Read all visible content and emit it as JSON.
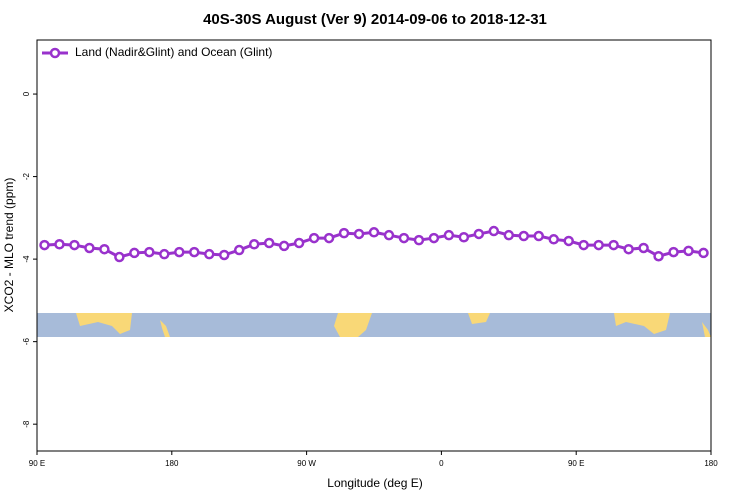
{
  "chart_data": {
    "type": "line",
    "title": "40S-30S August (Ver 9)   2014-09-06 to 2018-12-31",
    "x_label": "Longitude (deg E)",
    "y_label": "XCO2 - MLO trend (ppm)",
    "x": [
      95,
      105,
      115,
      125,
      135,
      145,
      155,
      165,
      175,
      185,
      195,
      205,
      215,
      225,
      235,
      245,
      255,
      265,
      275,
      285,
      295,
      305,
      315,
      325,
      335,
      345,
      355,
      365,
      375,
      385,
      395,
      405,
      415,
      425,
      435,
      445,
      455,
      465,
      475,
      485,
      495,
      505,
      515,
      525,
      535
    ],
    "series": [
      {
        "name": "Land (Nadir&Glint) and Ocean (Glint)",
        "color": "#9932cc",
        "values": [
          -3.66,
          -3.64,
          -3.66,
          -3.73,
          -3.76,
          -3.95,
          -3.85,
          -3.83,
          -3.88,
          -3.83,
          -3.83,
          -3.88,
          -3.9,
          -3.78,
          -3.64,
          -3.61,
          -3.68,
          -3.61,
          -3.49,
          -3.49,
          -3.37,
          -3.39,
          -3.35,
          -3.42,
          -3.49,
          -3.54,
          -3.49,
          -3.42,
          -3.47,
          -3.39,
          -3.32,
          -3.42,
          -3.44,
          -3.44,
          -3.52,
          -3.56,
          -3.66,
          -3.66,
          -3.66,
          -3.76,
          -3.73,
          -3.93,
          -3.83,
          -3.8,
          -3.85
        ]
      }
    ],
    "xlim": [
      90,
      540
    ],
    "xticks": [
      {
        "value": 90,
        "label": "90 E"
      },
      180,
      {
        "value": 270,
        "label": "90 W"
      },
      {
        "value": 360,
        "label": "0"
      },
      {
        "value": 450,
        "label": "90 E"
      },
      {
        "value": 540,
        "label": "180"
      }
    ],
    "ylim": [
      -8.65,
      1.31
    ],
    "yticks": [
      0,
      -2,
      -4,
      -6,
      -8
    ],
    "legend": "top-left"
  }
}
